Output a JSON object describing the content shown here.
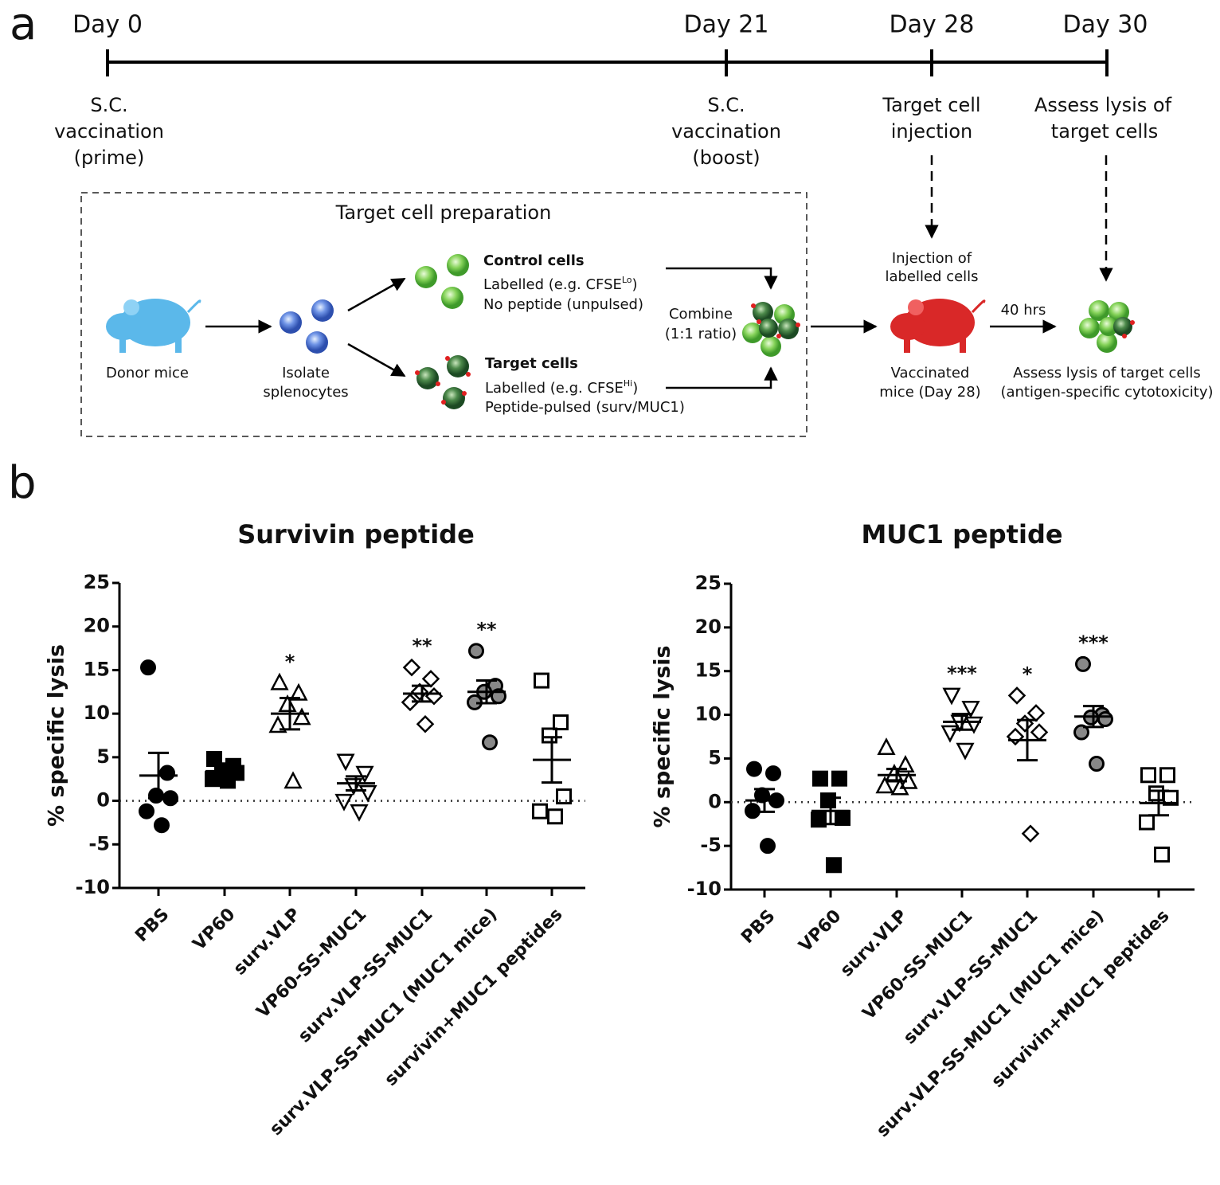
{
  "panel_a": {
    "label": "a",
    "timeline": [
      {
        "day": "Day 0",
        "event": [
          "S.C.",
          "vaccination",
          "(prime)"
        ]
      },
      {
        "day": "Day 21",
        "event": [
          "S.C.",
          "vaccination",
          "(boost)"
        ]
      },
      {
        "day": "Day 28",
        "event": [
          "Target cell",
          "injection"
        ]
      },
      {
        "day": "Day 30",
        "event": [
          "Assess lysis of",
          "target cells"
        ]
      }
    ],
    "prep": {
      "title": "Target cell preparation",
      "donor": "Donor mice",
      "isolate": [
        "Isolate",
        "splenocytes"
      ],
      "control": {
        "title": "Control cells",
        "label_prefix": "Labelled (e.g. CFSE",
        "label_sup": "Lo",
        "label_suffix": ")",
        "detail": "No peptide (unpulsed)"
      },
      "target": {
        "title": "Target cells",
        "label_prefix": "Labelled (e.g. CFSE",
        "label_sup": "Hi",
        "label_suffix": ")",
        "detail": "Peptide-pulsed (surv/MUC1)"
      },
      "combine": [
        "Combine",
        "(1:1 ratio)"
      ]
    },
    "injection": [
      "Injection of",
      "labelled cells"
    ],
    "vaccinated": [
      "Vaccinated",
      "mice (Day 28)"
    ],
    "time": "40 hrs",
    "assess": [
      "Assess lysis of target cells",
      "(antigen-specific cytotoxicity)"
    ]
  },
  "panel_b": {
    "label": "b"
  },
  "chart_data": [
    {
      "type": "dotplot",
      "title": "Survivin peptide",
      "y_label": "% specific lysis",
      "categories": [
        "PBS",
        "VP60",
        "surv.VLP",
        "VP60-SS-MUC1",
        "surv.VLP-SS-MUC1",
        "surv.VLP-SS-MUC1 (MUC1 mice)",
        "survivin+MUC1 peptides"
      ],
      "ylim": [
        -10,
        25
      ],
      "yticks": [
        -10,
        -5,
        0,
        5,
        10,
        15,
        20,
        25
      ],
      "reference_line": 0,
      "groups": [
        {
          "points": [
            15.3,
            3.2,
            0.6,
            0.3,
            -1.2,
            -2.8
          ],
          "mean": 2.9,
          "sem": 2.6,
          "marker": "circle",
          "fill": "#000000"
        },
        {
          "points": [
            4.8,
            4.0,
            3.5,
            3.2,
            2.5,
            2.3
          ],
          "mean": 3.4,
          "sem": 0.4,
          "marker": "square",
          "fill": "#000000"
        },
        {
          "points": [
            13.5,
            12.3,
            11.0,
            9.5,
            8.6,
            2.2
          ],
          "mean": 10.0,
          "sem": 1.8,
          "marker": "triangle",
          "fill": "none",
          "annotation": "*"
        },
        {
          "points": [
            4.6,
            3.2,
            1.8,
            1.0,
            0.0,
            -1.2
          ],
          "mean": 2.0,
          "sem": 0.8,
          "marker": "triangle-down",
          "fill": "none"
        },
        {
          "points": [
            15.3,
            14.0,
            12.5,
            12.0,
            11.3,
            8.8
          ],
          "mean": 12.3,
          "sem": 0.9,
          "marker": "diamond",
          "fill": "none",
          "annotation": "**"
        },
        {
          "points": [
            17.2,
            13.2,
            12.5,
            12.0,
            11.3,
            6.7
          ],
          "mean": 12.5,
          "sem": 1.3,
          "marker": "circle",
          "fill": "#888888",
          "annotation": "**"
        },
        {
          "points": [
            13.8,
            9.0,
            7.5,
            0.5,
            -1.2,
            -1.8
          ],
          "mean": 4.7,
          "sem": 2.6,
          "marker": "square",
          "fill": "none"
        }
      ]
    },
    {
      "type": "dotplot",
      "title": "MUC1 peptide",
      "y_label": "% specific lysis",
      "categories": [
        "PBS",
        "VP60",
        "surv.VLP",
        "VP60-SS-MUC1",
        "surv.VLP-SS-MUC1",
        "surv.VLP-SS-MUC1 (MUC1 mice)",
        "survivin+MUC1 peptides"
      ],
      "ylim": [
        -10,
        25
      ],
      "yticks": [
        -10,
        -5,
        0,
        5,
        10,
        15,
        20,
        25
      ],
      "reference_line": 0,
      "groups": [
        {
          "points": [
            3.8,
            3.3,
            0.8,
            0.2,
            -1.0,
            -5.0
          ],
          "mean": 0.2,
          "sem": 1.3,
          "marker": "circle",
          "fill": "#000000"
        },
        {
          "points": [
            2.7,
            2.7,
            0.2,
            -1.8,
            -2.0,
            -7.2
          ],
          "mean": -1.0,
          "sem": 1.5,
          "marker": "square",
          "fill": "#000000"
        },
        {
          "points": [
            6.2,
            4.2,
            3.2,
            2.3,
            1.8,
            1.6
          ],
          "mean": 3.1,
          "sem": 0.7,
          "marker": "triangle",
          "fill": "none"
        },
        {
          "points": [
            12.3,
            10.8,
            9.2,
            9.0,
            8.0,
            6.0
          ],
          "mean": 9.2,
          "sem": 0.9,
          "marker": "triangle-down",
          "fill": "none",
          "annotation": "***"
        },
        {
          "points": [
            12.2,
            10.2,
            9.0,
            8.0,
            7.5,
            -3.6
          ],
          "mean": 7.1,
          "sem": 2.3,
          "marker": "diamond",
          "fill": "none",
          "annotation": "*"
        },
        {
          "points": [
            15.8,
            10.0,
            9.7,
            9.5,
            8.0,
            4.4
          ],
          "mean": 9.8,
          "sem": 1.2,
          "marker": "circle",
          "fill": "#888888",
          "annotation": "***"
        },
        {
          "points": [
            3.1,
            3.1,
            1.0,
            0.5,
            -2.3,
            -6.0
          ],
          "mean": -0.1,
          "sem": 1.4,
          "marker": "square",
          "fill": "none"
        }
      ]
    }
  ]
}
